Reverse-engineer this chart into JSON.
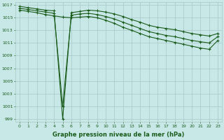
{
  "xlabel": "Graphe pression niveau de la mer (hPa)",
  "bg_color": "#c8e8e8",
  "grid_color": "#a8c8c8",
  "line_color": "#1a5c1a",
  "marker": "+",
  "xlim": [
    -0.5,
    23.5
  ],
  "ylim": [
    998.5,
    1017.5
  ],
  "yticks": [
    999,
    1001,
    1003,
    1005,
    1007,
    1009,
    1011,
    1013,
    1015,
    1017
  ],
  "xticks": [
    0,
    1,
    2,
    3,
    4,
    5,
    6,
    7,
    8,
    9,
    10,
    11,
    12,
    13,
    14,
    15,
    16,
    17,
    18,
    19,
    20,
    21,
    22,
    23
  ],
  "line1": [
    1016.8,
    1016.6,
    1016.4,
    1016.2,
    1016.1,
    999.0,
    1015.8,
    1016.0,
    1016.2,
    1016.1,
    1015.9,
    1015.6,
    1015.2,
    1014.7,
    1014.3,
    1013.8,
    1013.5,
    1013.3,
    1013.1,
    1012.8,
    1012.5,
    1012.3,
    1012.1,
    1012.5
  ],
  "line2": [
    1016.5,
    1016.3,
    1016.1,
    1015.9,
    1015.7,
    1001.0,
    1015.4,
    1015.6,
    1015.7,
    1015.5,
    1015.2,
    1014.8,
    1014.3,
    1013.8,
    1013.3,
    1012.8,
    1012.5,
    1012.2,
    1012.0,
    1011.7,
    1011.4,
    1011.2,
    1011.0,
    1012.0
  ],
  "line3": [
    1016.2,
    1016.0,
    1015.8,
    1015.5,
    1015.3,
    1015.1,
    1015.0,
    1015.1,
    1015.2,
    1015.0,
    1014.6,
    1014.1,
    1013.5,
    1013.0,
    1012.5,
    1012.0,
    1011.7,
    1011.4,
    1011.1,
    1010.8,
    1010.5,
    1010.2,
    1010.0,
    1011.4
  ]
}
